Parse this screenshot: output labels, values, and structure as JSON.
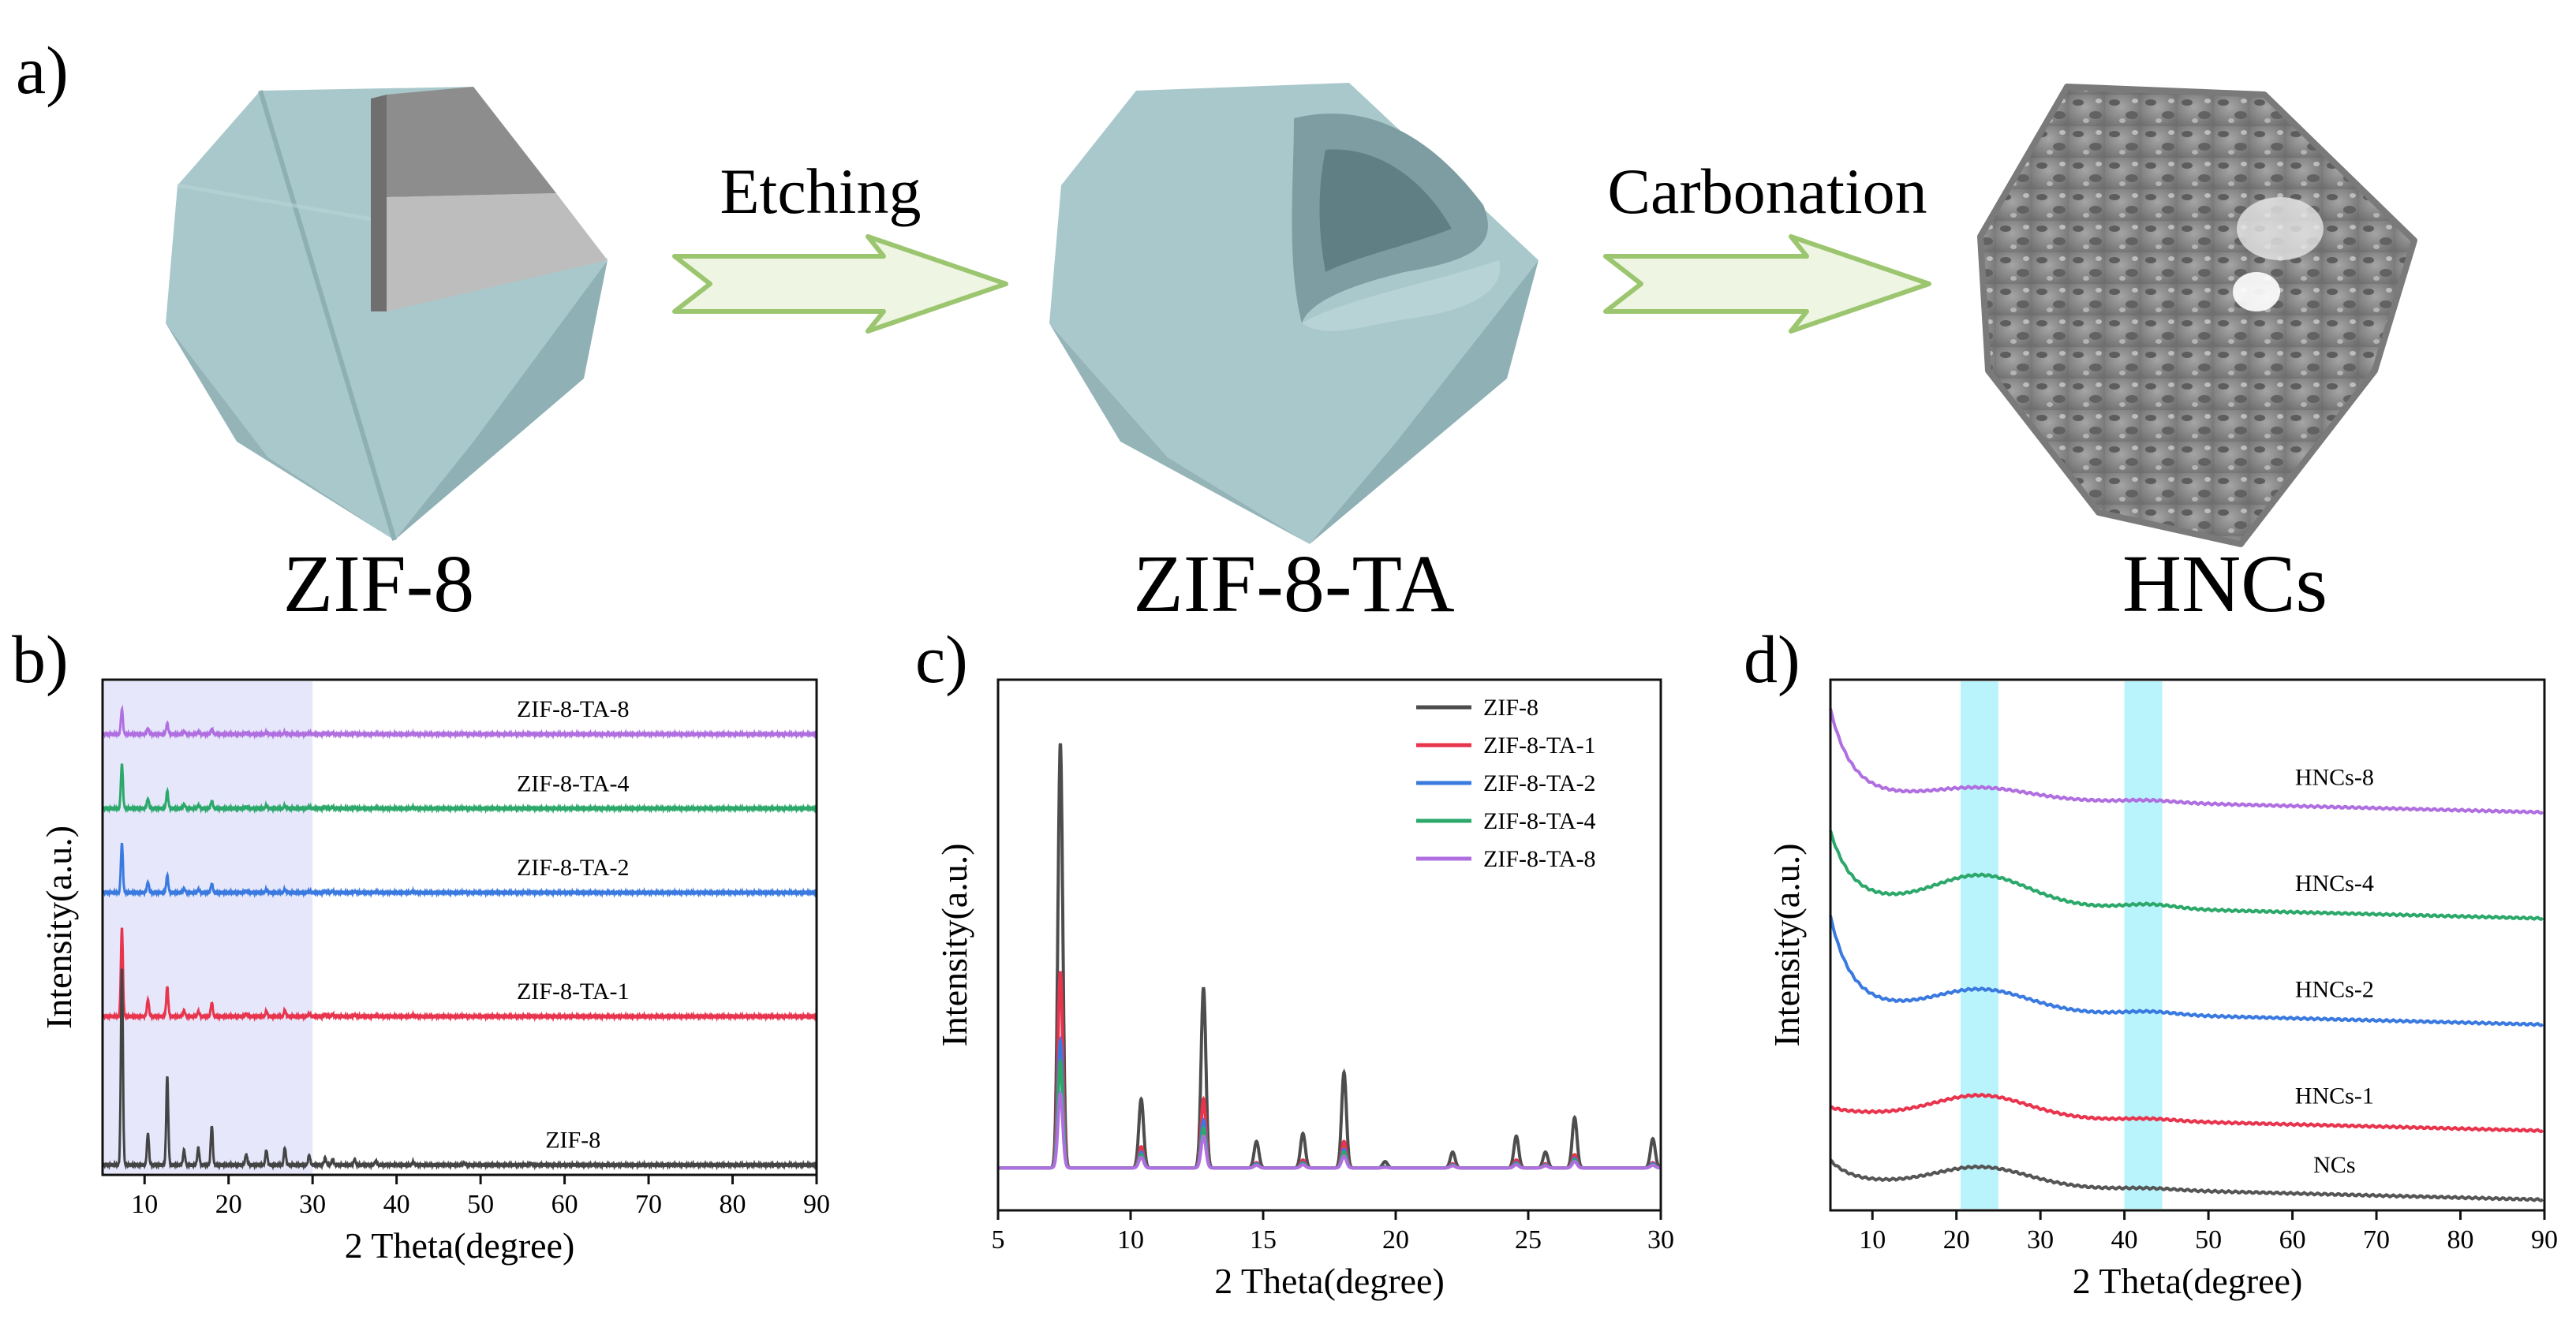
{
  "scheme": {
    "panel_letter": "a)",
    "materials": [
      "ZIF-8",
      "ZIF-8-TA",
      "HNCs"
    ],
    "steps": [
      "Etching",
      "Carbonation"
    ],
    "colors": {
      "crystal": "#a9c8cb",
      "crystal_dark": "#7e9ea2",
      "cut": "#8e8e8e",
      "carbon": "#8a8a8a",
      "arrow_fill": "#eef5e2",
      "arrow_stroke": "#9cc56f"
    }
  },
  "chart_data": [
    {
      "type": "line",
      "panel_letter": "b)",
      "xlabel": "2 Theta(degree)",
      "ylabel": "Intensity(a.u.)",
      "xlim": [
        5,
        90
      ],
      "xticks": [
        10,
        20,
        30,
        40,
        50,
        60,
        70,
        80,
        90
      ],
      "highlight_region": [
        5,
        30
      ],
      "highlight_color": "#e6e7fb",
      "peak_positions": [
        7.3,
        10.4,
        12.7,
        14.7,
        16.4,
        18.0,
        22.1,
        24.5,
        26.7,
        29.6,
        31.5,
        32.4,
        35.0,
        37.5,
        42.0,
        48.0,
        56.0
      ],
      "series": [
        {
          "name": "ZIF-8-TA-8",
          "color": "#b06fe0",
          "baseline": 0.89,
          "peaks": [
            0.05,
            0.012,
            0.022,
            0.005,
            0.004,
            0.01,
            0.003,
            0.004,
            0.004,
            0.003,
            0.002,
            0.002,
            0.002,
            0.001,
            0.001,
            0.001,
            0.001
          ]
        },
        {
          "name": "ZIF-8-TA-4",
          "color": "#2ba86a",
          "baseline": 0.74,
          "peaks": [
            0.09,
            0.02,
            0.035,
            0.008,
            0.006,
            0.015,
            0.004,
            0.006,
            0.006,
            0.004,
            0.003,
            0.003,
            0.002,
            0.002,
            0.002,
            0.001,
            0.001
          ]
        },
        {
          "name": "ZIF-8-TA-2",
          "color": "#3a7ae0",
          "baseline": 0.57,
          "peaks": [
            0.1,
            0.022,
            0.035,
            0.008,
            0.006,
            0.018,
            0.004,
            0.006,
            0.007,
            0.004,
            0.003,
            0.003,
            0.002,
            0.002,
            0.002,
            0.001,
            0.001
          ]
        },
        {
          "name": "ZIF-8-TA-1",
          "color": "#e8344d",
          "baseline": 0.32,
          "peaks": [
            0.18,
            0.035,
            0.06,
            0.012,
            0.01,
            0.028,
            0.006,
            0.01,
            0.012,
            0.006,
            0.004,
            0.004,
            0.003,
            0.002,
            0.002,
            0.001,
            0.001
          ]
        },
        {
          "name": "ZIF-8",
          "color": "#444444",
          "baseline": 0.02,
          "peaks": [
            0.4,
            0.065,
            0.18,
            0.03,
            0.035,
            0.08,
            0.022,
            0.03,
            0.035,
            0.02,
            0.015,
            0.012,
            0.01,
            0.008,
            0.006,
            0.004,
            0.003
          ]
        }
      ]
    },
    {
      "type": "line",
      "panel_letter": "c)",
      "xlabel": "2 Theta(degree)",
      "ylabel": "Intensity(a.u.)",
      "xlim": [
        5,
        30
      ],
      "xticks": [
        5,
        10,
        15,
        20,
        25,
        30
      ],
      "legend": "top-right",
      "baseline": 0.08,
      "peak_positions": [
        7.35,
        10.4,
        12.75,
        14.75,
        16.5,
        18.05,
        19.6,
        22.15,
        24.55,
        25.65,
        26.75,
        29.7
      ],
      "series": [
        {
          "name": "ZIF-8",
          "color": "#4d4d4d",
          "peaks": [
            0.8,
            0.13,
            0.34,
            0.05,
            0.065,
            0.18,
            0.012,
            0.03,
            0.06,
            0.03,
            0.095,
            0.055
          ]
        },
        {
          "name": "ZIF-8-TA-1",
          "color": "#e8344d",
          "peaks": [
            0.37,
            0.04,
            0.13,
            0.01,
            0.015,
            0.05,
            0.002,
            0.008,
            0.015,
            0.008,
            0.025,
            0.01
          ]
        },
        {
          "name": "ZIF-8-TA-2",
          "color": "#3a7ae0",
          "peaks": [
            0.24,
            0.03,
            0.09,
            0.008,
            0.01,
            0.035,
            0.002,
            0.006,
            0.01,
            0.006,
            0.018,
            0.008
          ]
        },
        {
          "name": "ZIF-8-TA-4",
          "color": "#2ba86a",
          "peaks": [
            0.2,
            0.025,
            0.075,
            0.006,
            0.008,
            0.03,
            0.002,
            0.005,
            0.008,
            0.005,
            0.015,
            0.006
          ]
        },
        {
          "name": "ZIF-8-TA-8",
          "color": "#b06fe0",
          "peaks": [
            0.14,
            0.02,
            0.06,
            0.005,
            0.006,
            0.022,
            0.001,
            0.004,
            0.006,
            0.004,
            0.012,
            0.005
          ]
        }
      ]
    },
    {
      "type": "line",
      "panel_letter": "d)",
      "xlabel": "2 Theta(degree)",
      "ylabel": "Intensity(a.u.)",
      "xlim": [
        5,
        90
      ],
      "xticks": [
        10,
        20,
        30,
        40,
        50,
        60,
        70,
        80,
        90
      ],
      "highlight_bands": [
        [
          20.5,
          25.0
        ],
        [
          40.0,
          44.5
        ]
      ],
      "highlight_color": "#b9f3fb",
      "series": [
        {
          "name": "HNCs-8",
          "color": "#b06fe0",
          "plateau": 0.77,
          "hump": 0.02,
          "hump2": 0.004,
          "decay": 0.16
        },
        {
          "name": "HNCs-4",
          "color": "#2ba86a",
          "plateau": 0.57,
          "hump": 0.055,
          "hump2": 0.008,
          "decay": 0.13
        },
        {
          "name": "HNCs-2",
          "color": "#3a7ae0",
          "plateau": 0.37,
          "hump": 0.04,
          "hump2": 0.006,
          "decay": 0.17
        },
        {
          "name": "HNCs-1",
          "color": "#e8344d",
          "plateau": 0.17,
          "hump": 0.04,
          "hump2": 0.004,
          "decay": 0.01
        },
        {
          "name": "NCs",
          "color": "#555555",
          "plateau": 0.04,
          "hump": 0.035,
          "hump2": 0.003,
          "decay": 0.04
        }
      ]
    }
  ]
}
